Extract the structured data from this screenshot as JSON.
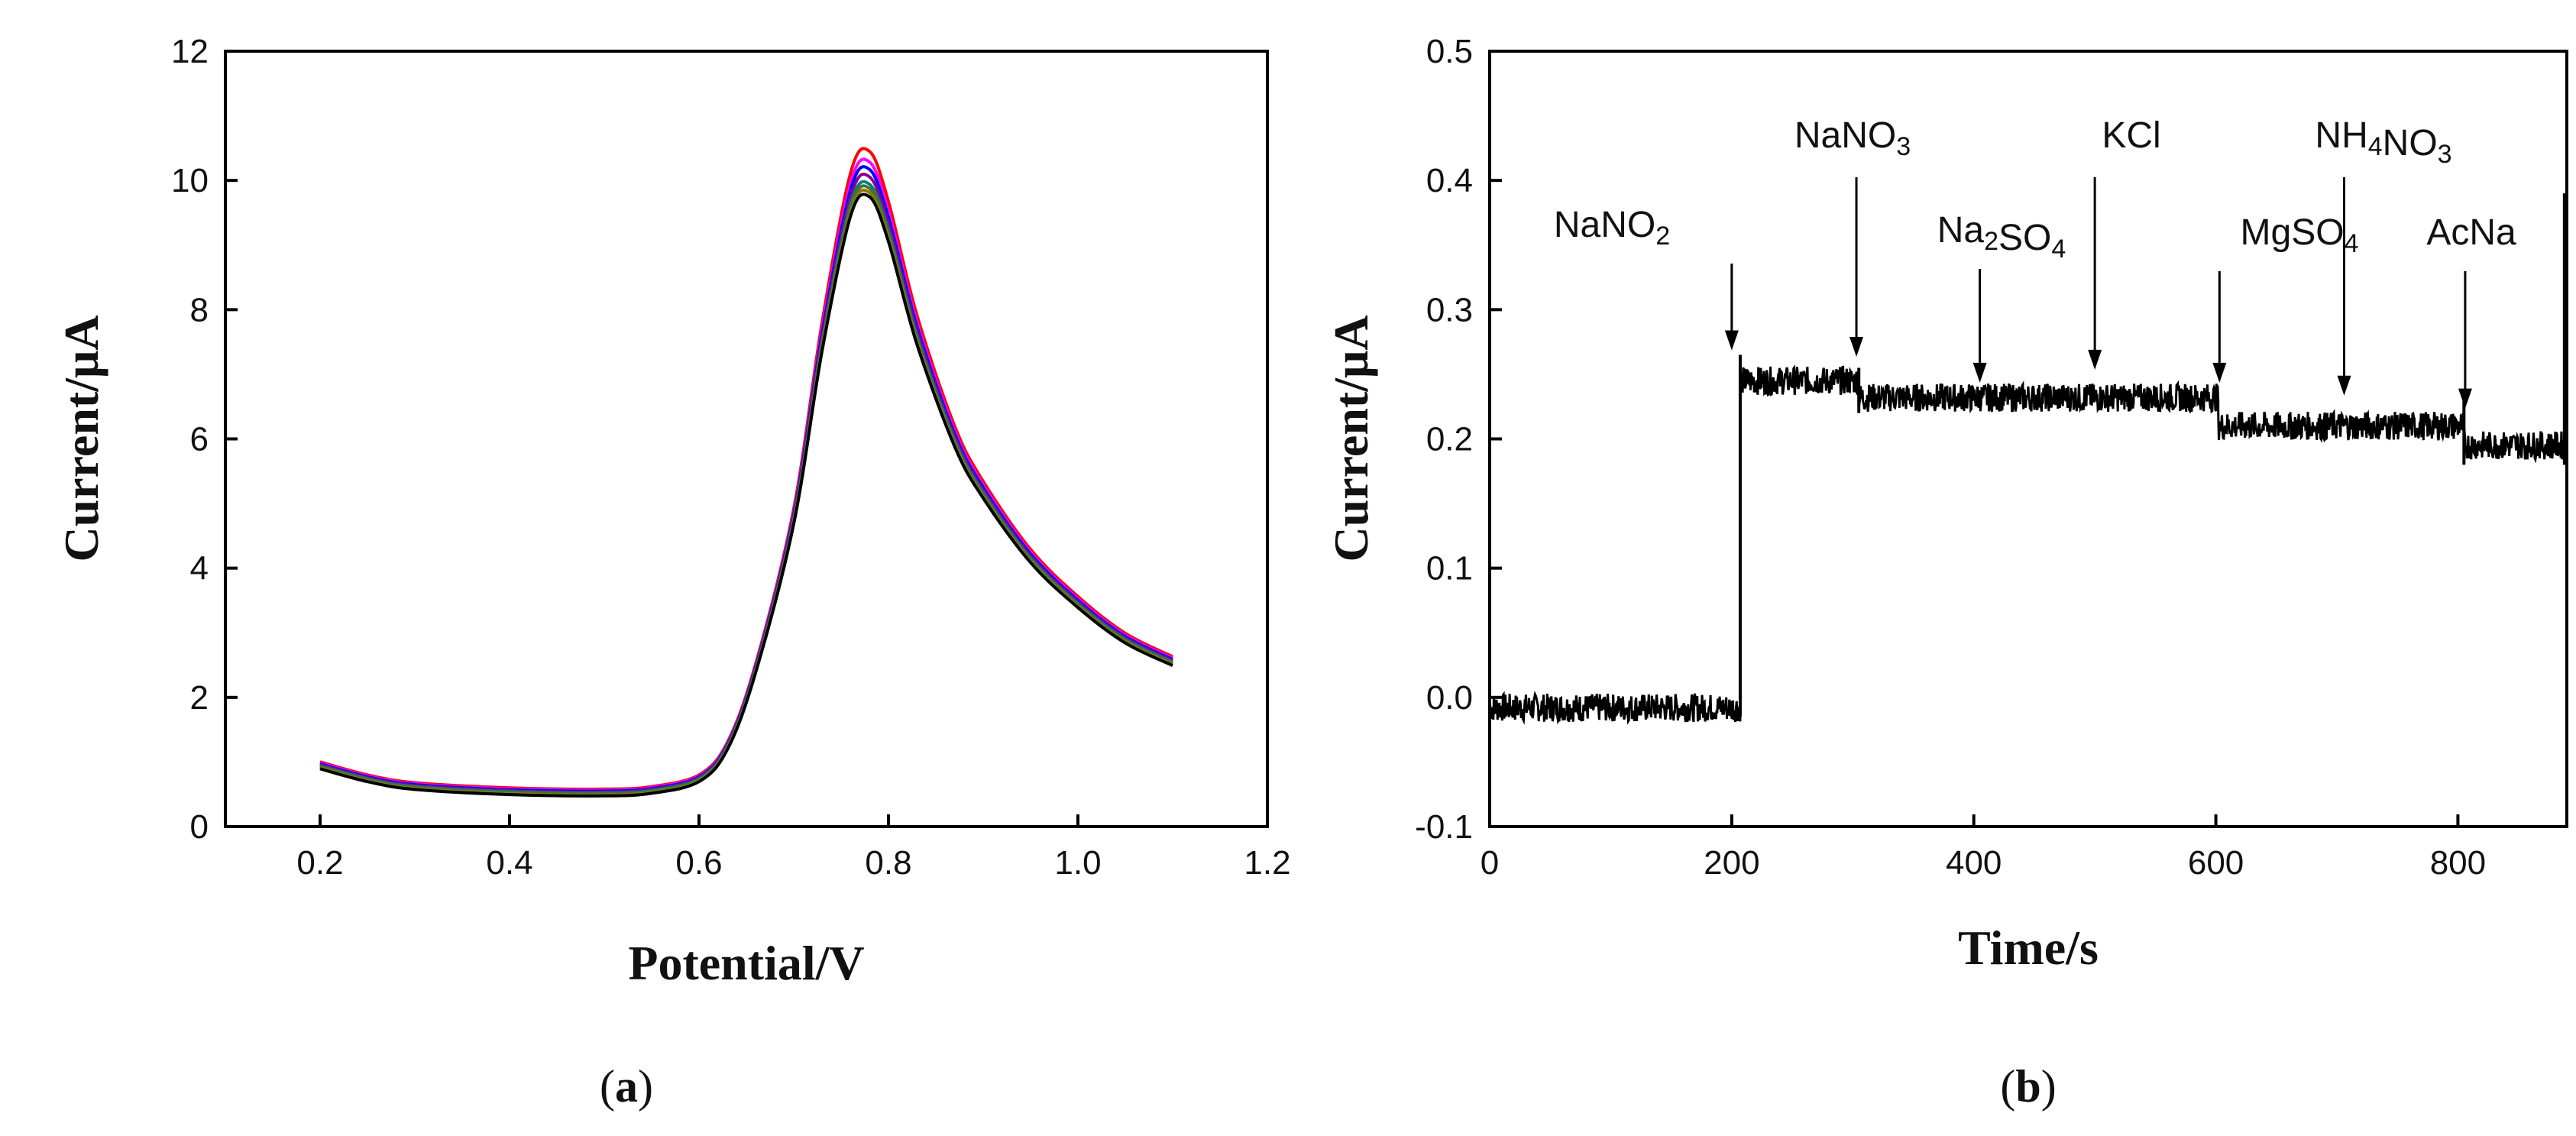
{
  "chart_data": [
    {
      "type": "line",
      "panel_label": "a",
      "xlabel": "Potential/V",
      "ylabel": "Current/μA",
      "xlim": [
        0.1,
        1.2
      ],
      "ylim": [
        0,
        12
      ],
      "x_ticks": [
        "0.2",
        "0.4",
        "0.6",
        "0.8",
        "1.0",
        "1.2"
      ],
      "y_ticks": [
        "0",
        "2",
        "4",
        "6",
        "8",
        "10",
        "12"
      ],
      "series_colors": [
        "#ff0000",
        "#ff00ff",
        "#0000ff",
        "#8b008b",
        "#008080",
        "#556b2f",
        "#808000",
        "#000000"
      ],
      "peak_currents": [
        10.45,
        10.3,
        10.2,
        10.1,
        10.0,
        9.95,
        9.9,
        9.85
      ],
      "shape_points": [
        [
          0.2,
          1.0
        ],
        [
          0.25,
          0.8
        ],
        [
          0.3,
          0.68
        ],
        [
          0.4,
          0.6
        ],
        [
          0.5,
          0.58
        ],
        [
          0.55,
          0.62
        ],
        [
          0.6,
          0.8
        ],
        [
          0.63,
          1.3
        ],
        [
          0.66,
          2.5
        ],
        [
          0.7,
          4.8
        ],
        [
          0.73,
          7.5
        ],
        [
          0.76,
          9.6
        ],
        [
          0.78,
          9.9
        ],
        [
          0.8,
          9.2
        ],
        [
          0.83,
          7.6
        ],
        [
          0.87,
          6.0
        ],
        [
          0.9,
          5.2
        ],
        [
          0.95,
          4.2
        ],
        [
          1.0,
          3.5
        ],
        [
          1.05,
          2.95
        ],
        [
          1.1,
          2.6
        ]
      ]
    },
    {
      "type": "line",
      "panel_label": "b",
      "xlabel": "Time/s",
      "ylabel": "Current/μA",
      "xlim": [
        0,
        890
      ],
      "ylim": [
        -0.1,
        0.5
      ],
      "x_ticks": [
        "0",
        "200",
        "400",
        "600",
        "800"
      ],
      "y_ticks": [
        "-0.1",
        "0.0",
        "0.1",
        "0.2",
        "0.3",
        "0.4",
        "0.5"
      ],
      "steps": [
        {
          "from": 0,
          "to": 207,
          "current": -0.008
        },
        {
          "from": 207,
          "to": 305,
          "current": 0.245
        },
        {
          "from": 305,
          "to": 500,
          "current": 0.232
        },
        {
          "from": 500,
          "to": 602,
          "current": 0.232
        },
        {
          "from": 602,
          "to": 805,
          "current": 0.21
        },
        {
          "from": 805,
          "to": 890,
          "current": 0.195
        }
      ],
      "annotations": [
        {
          "label": "NaNO2",
          "t": 200,
          "current": 0.265
        },
        {
          "label": "NaNO3",
          "t": 303,
          "current": 0.26
        },
        {
          "label": "Na2SO4",
          "t": 405,
          "current": 0.24
        },
        {
          "label": "KCl",
          "t": 500,
          "current": 0.25
        },
        {
          "label": "MgSO4",
          "t": 603,
          "current": 0.24
        },
        {
          "label": "NH4NO3",
          "t": 706,
          "current": 0.23
        },
        {
          "label": "AcNa",
          "t": 806,
          "current": 0.22
        }
      ]
    }
  ]
}
